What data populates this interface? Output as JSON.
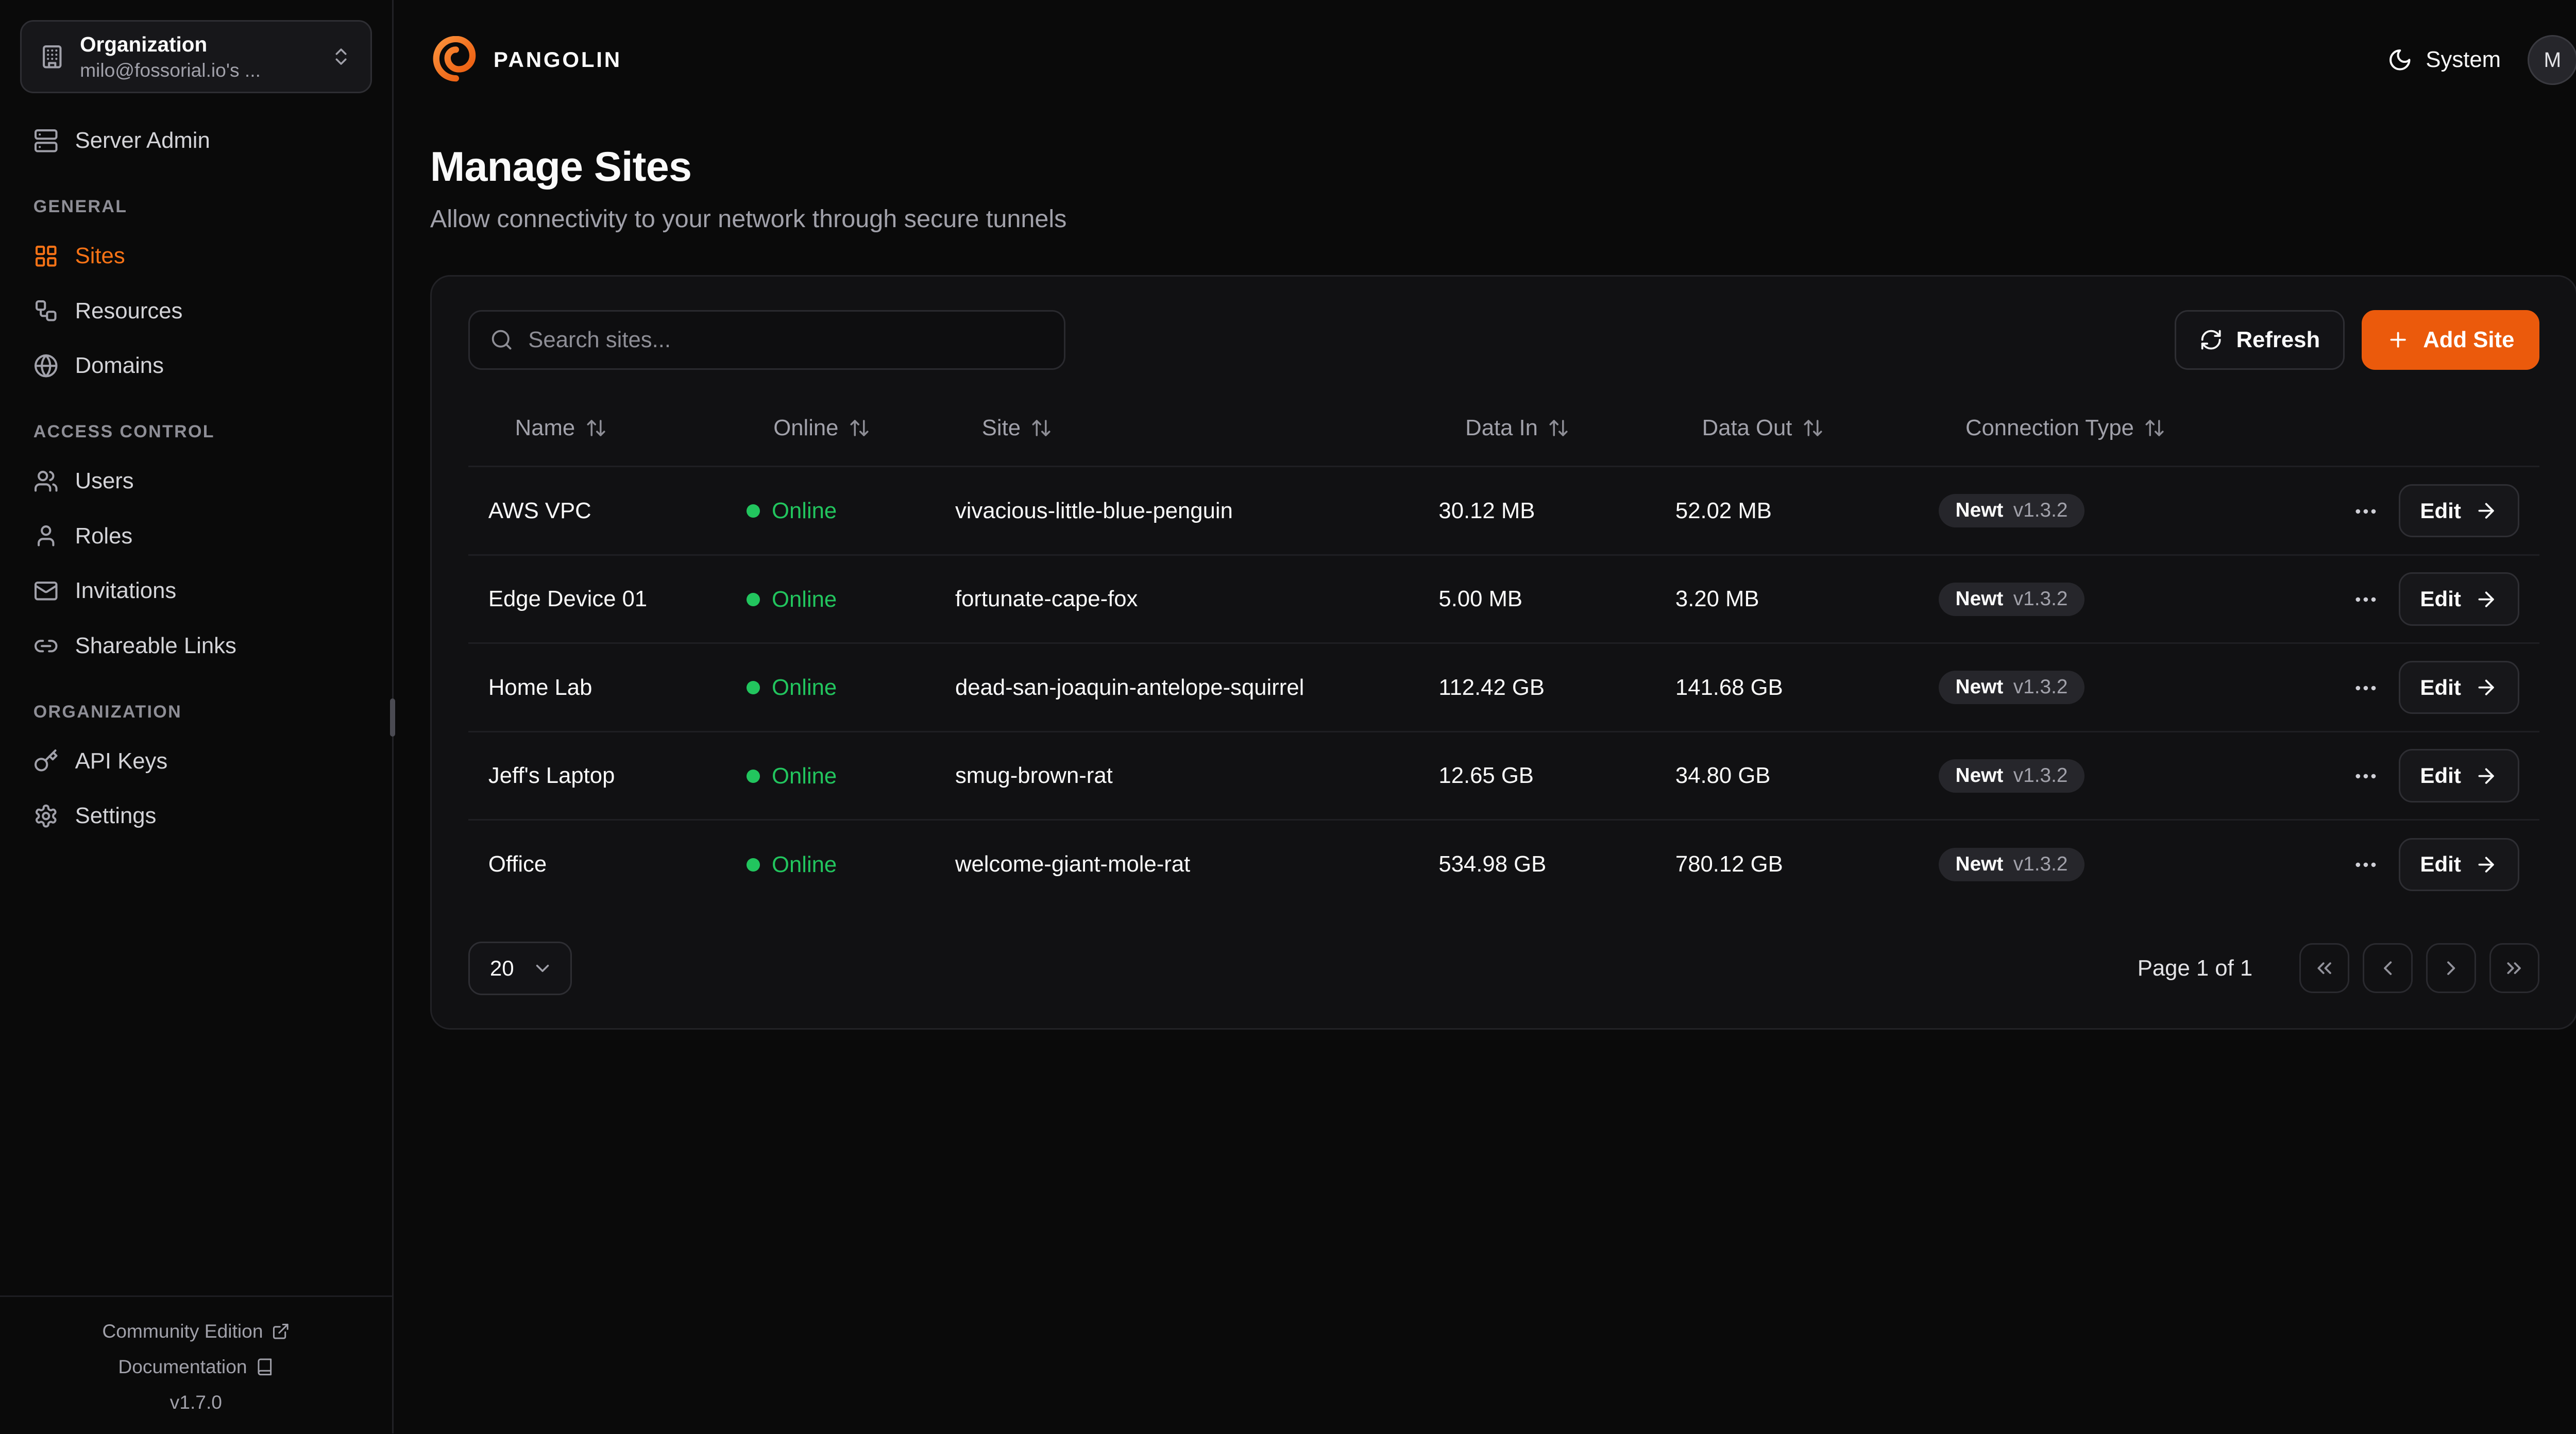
{
  "colors": {
    "accent": "#eb5a0c",
    "accent_bright": "#f97316",
    "online_green": "#22c55e",
    "background": "#0a0a0a",
    "card": "#111113"
  },
  "sidebar": {
    "org_picker": {
      "icon": "building-icon",
      "title": "Organization",
      "subtitle": "milo@fossorial.io's ...",
      "chevron_icon": "chevrons-up-down-icon"
    },
    "top_items": [
      {
        "label": "Server Admin",
        "icon": "server-icon",
        "active": false
      }
    ],
    "sections": [
      {
        "label": "GENERAL",
        "items": [
          {
            "label": "Sites",
            "icon": "sites-icon",
            "active": true
          },
          {
            "label": "Resources",
            "icon": "resources-icon",
            "active": false
          },
          {
            "label": "Domains",
            "icon": "globe-icon",
            "active": false
          }
        ]
      },
      {
        "label": "ACCESS CONTROL",
        "items": [
          {
            "label": "Users",
            "icon": "users-icon",
            "active": false
          },
          {
            "label": "Roles",
            "icon": "role-icon",
            "active": false
          },
          {
            "label": "Invitations",
            "icon": "mail-icon",
            "active": false
          },
          {
            "label": "Shareable Links",
            "icon": "link-icon",
            "active": false
          }
        ]
      },
      {
        "label": "ORGANIZATION",
        "items": [
          {
            "label": "API Keys",
            "icon": "key-icon",
            "active": false
          },
          {
            "label": "Settings",
            "icon": "gear-icon",
            "active": false
          }
        ]
      }
    ],
    "footer": {
      "links": [
        {
          "label": "Community Edition",
          "icon": "external-link-icon"
        },
        {
          "label": "Documentation",
          "icon": "book-icon"
        }
      ],
      "version": "v1.7.0"
    }
  },
  "header": {
    "brand": "PANGOLIN",
    "logo_icon": "pangolin-logo-icon",
    "theme_icon": "moon-icon",
    "theme_label": "System",
    "avatar_initial": "M"
  },
  "page": {
    "title": "Manage Sites",
    "subtitle": "Allow connectivity to your network through secure tunnels"
  },
  "toolbar": {
    "search_icon": "search-icon",
    "search_placeholder": "Search sites...",
    "refresh_icon": "refresh-icon",
    "refresh_label": "Refresh",
    "add_icon": "plus-icon",
    "add_site_label": "Add Site"
  },
  "table": {
    "sort_icon": "sort-icon",
    "row_menu_icon": "ellipsis-icon",
    "edit_label": "Edit",
    "edit_icon": "arrow-right-icon",
    "columns": [
      "Name",
      "Online",
      "Site",
      "Data In",
      "Data Out",
      "Connection Type"
    ],
    "rows": [
      {
        "name": "AWS VPC",
        "online": "Online",
        "site": "vivacious-little-blue-penguin",
        "data_in": "30.12 MB",
        "data_out": "52.02 MB",
        "conn_name": "Newt",
        "conn_version": "v1.3.2"
      },
      {
        "name": "Edge Device 01",
        "online": "Online",
        "site": "fortunate-cape-fox",
        "data_in": "5.00 MB",
        "data_out": "3.20 MB",
        "conn_name": "Newt",
        "conn_version": "v1.3.2"
      },
      {
        "name": "Home Lab",
        "online": "Online",
        "site": "dead-san-joaquin-antelope-squirrel",
        "data_in": "112.42 GB",
        "data_out": "141.68 GB",
        "conn_name": "Newt",
        "conn_version": "v1.3.2"
      },
      {
        "name": "Jeff's Laptop",
        "online": "Online",
        "site": "smug-brown-rat",
        "data_in": "12.65 GB",
        "data_out": "34.80 GB",
        "conn_name": "Newt",
        "conn_version": "v1.3.2"
      },
      {
        "name": "Office",
        "online": "Online",
        "site": "welcome-giant-mole-rat",
        "data_in": "534.98 GB",
        "data_out": "780.12 GB",
        "conn_name": "Newt",
        "conn_version": "v1.3.2"
      }
    ]
  },
  "pagination": {
    "page_size": "20",
    "page_size_chevron_icon": "chevron-down-icon",
    "page_label": "Page 1 of 1",
    "buttons": [
      {
        "name": "first-page-button",
        "icon": "chevrons-left-icon"
      },
      {
        "name": "prev-page-button",
        "icon": "chevron-left-icon"
      },
      {
        "name": "next-page-button",
        "icon": "chevron-right-icon"
      },
      {
        "name": "last-page-button",
        "icon": "chevrons-right-icon"
      }
    ]
  }
}
